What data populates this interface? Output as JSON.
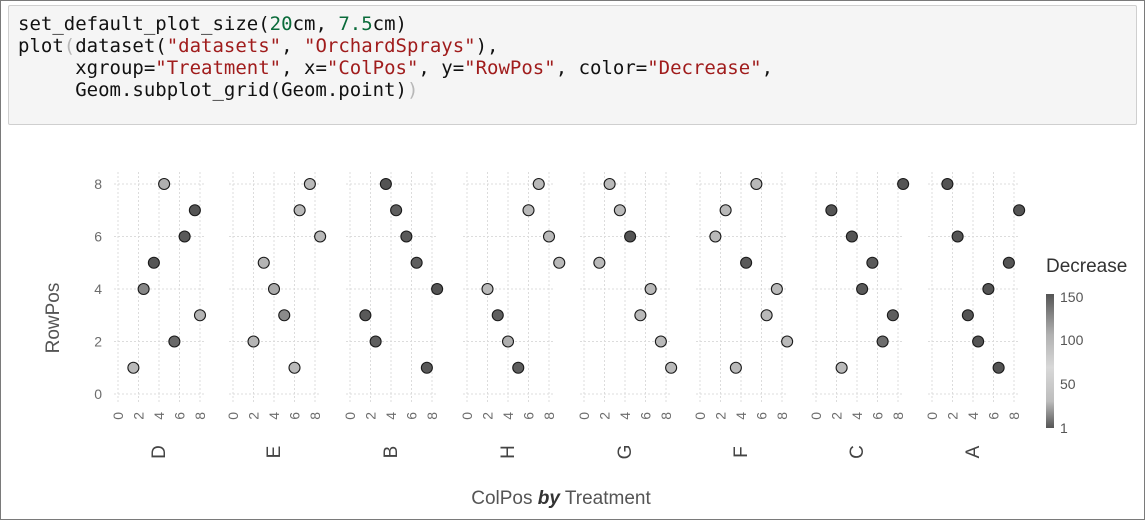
{
  "code": {
    "lines": [
      [
        {
          "t": "set_default_plot_size("
        },
        {
          "t": "20",
          "c": "num"
        },
        {
          "t": "cm, "
        },
        {
          "t": "7.5",
          "c": "num"
        },
        {
          "t": "cm)"
        }
      ],
      [
        {
          "t": "plot"
        },
        {
          "t": "(",
          "c": "paren"
        },
        {
          "t": "dataset("
        },
        {
          "t": "\"datasets\"",
          "c": "str"
        },
        {
          "t": ", "
        },
        {
          "t": "\"OrchardSprays\"",
          "c": "str"
        },
        {
          "t": "),"
        }
      ],
      [
        {
          "t": "     xgroup="
        },
        {
          "t": "\"Treatment\"",
          "c": "str"
        },
        {
          "t": ", x="
        },
        {
          "t": "\"ColPos\"",
          "c": "str"
        },
        {
          "t": ", y="
        },
        {
          "t": "\"RowPos\"",
          "c": "str"
        },
        {
          "t": ", color="
        },
        {
          "t": "\"Decrease\"",
          "c": "str"
        },
        {
          "t": ","
        }
      ],
      [
        {
          "t": "     Geom.subplot_grid(Geom.point)"
        },
        {
          "t": ")",
          "c": "paren"
        }
      ]
    ]
  },
  "chart_data": {
    "type": "scatter",
    "xlabel_parts": [
      "ColPos",
      "by",
      "Treatment"
    ],
    "ylabel": "RowPos",
    "xticks": [
      "0",
      "2",
      "4",
      "6",
      "8"
    ],
    "yticks": [
      "0",
      "2",
      "4",
      "6",
      "8"
    ],
    "xlim": [
      0,
      9
    ],
    "ylim": [
      -0.2,
      8.4
    ],
    "grid": true,
    "legend": {
      "title": "Decrease",
      "ticks": [
        "150",
        "100",
        "50",
        "1"
      ],
      "placement": "right",
      "range": [
        1,
        150
      ],
      "colors": [
        "#e0e0e0",
        "#4a4a4a"
      ]
    },
    "panels": [
      {
        "treatment": "D",
        "points": [
          [
            4.5,
            8,
            50
          ],
          [
            7.5,
            7,
            140
          ],
          [
            6.5,
            6,
            135
          ],
          [
            3.5,
            5,
            140
          ],
          [
            2.5,
            4,
            90
          ],
          [
            8,
            3,
            45
          ],
          [
            5.5,
            2,
            120
          ],
          [
            1.5,
            1,
            40
          ]
        ]
      },
      {
        "treatment": "E",
        "points": [
          [
            7.5,
            8,
            40
          ],
          [
            6.5,
            7,
            40
          ],
          [
            8.5,
            6,
            40
          ],
          [
            3,
            5,
            45
          ],
          [
            4,
            4,
            55
          ],
          [
            5,
            3,
            85
          ],
          [
            2,
            2,
            45
          ],
          [
            6,
            1,
            40
          ]
        ]
      },
      {
        "treatment": "B",
        "points": [
          [
            3.5,
            8,
            140
          ],
          [
            4.5,
            7,
            130
          ],
          [
            5.5,
            6,
            135
          ],
          [
            6.5,
            5,
            130
          ],
          [
            8.5,
            4,
            140
          ],
          [
            1.5,
            3,
            135
          ],
          [
            2.5,
            2,
            130
          ],
          [
            7.5,
            1,
            135
          ]
        ]
      },
      {
        "treatment": "H",
        "points": [
          [
            7,
            8,
            40
          ],
          [
            6,
            7,
            40
          ],
          [
            8,
            6,
            40
          ],
          [
            9,
            5,
            40
          ],
          [
            2,
            4,
            40
          ],
          [
            3,
            3,
            130
          ],
          [
            4,
            2,
            50
          ],
          [
            5,
            1,
            130
          ]
        ]
      },
      {
        "treatment": "G",
        "points": [
          [
            2.5,
            8,
            40
          ],
          [
            3.5,
            7,
            40
          ],
          [
            4.5,
            6,
            140
          ],
          [
            1.5,
            5,
            40
          ],
          [
            6.5,
            4,
            40
          ],
          [
            5.5,
            3,
            40
          ],
          [
            7.5,
            2,
            40
          ],
          [
            8.5,
            1,
            40
          ]
        ]
      },
      {
        "treatment": "F",
        "points": [
          [
            5.5,
            8,
            40
          ],
          [
            2.5,
            7,
            40
          ],
          [
            1.5,
            6,
            40
          ],
          [
            4.5,
            5,
            135
          ],
          [
            7.5,
            4,
            40
          ],
          [
            6.5,
            3,
            40
          ],
          [
            8.5,
            2,
            40
          ],
          [
            3.5,
            1,
            40
          ]
        ]
      },
      {
        "treatment": "C",
        "points": [
          [
            8.5,
            8,
            140
          ],
          [
            1.5,
            7,
            140
          ],
          [
            3.5,
            6,
            140
          ],
          [
            5.5,
            5,
            135
          ],
          [
            4.5,
            4,
            135
          ],
          [
            7.5,
            3,
            130
          ],
          [
            6.5,
            2,
            115
          ],
          [
            2.5,
            1,
            40
          ]
        ]
      },
      {
        "treatment": "A",
        "points": [
          [
            1.5,
            8,
            140
          ],
          [
            2.5,
            6,
            140
          ],
          [
            8.5,
            7,
            140
          ],
          [
            7.5,
            5,
            140
          ],
          [
            5.5,
            4,
            140
          ],
          [
            3.5,
            3,
            140
          ],
          [
            4.5,
            2,
            140
          ],
          [
            6.5,
            1,
            140
          ]
        ]
      }
    ]
  }
}
